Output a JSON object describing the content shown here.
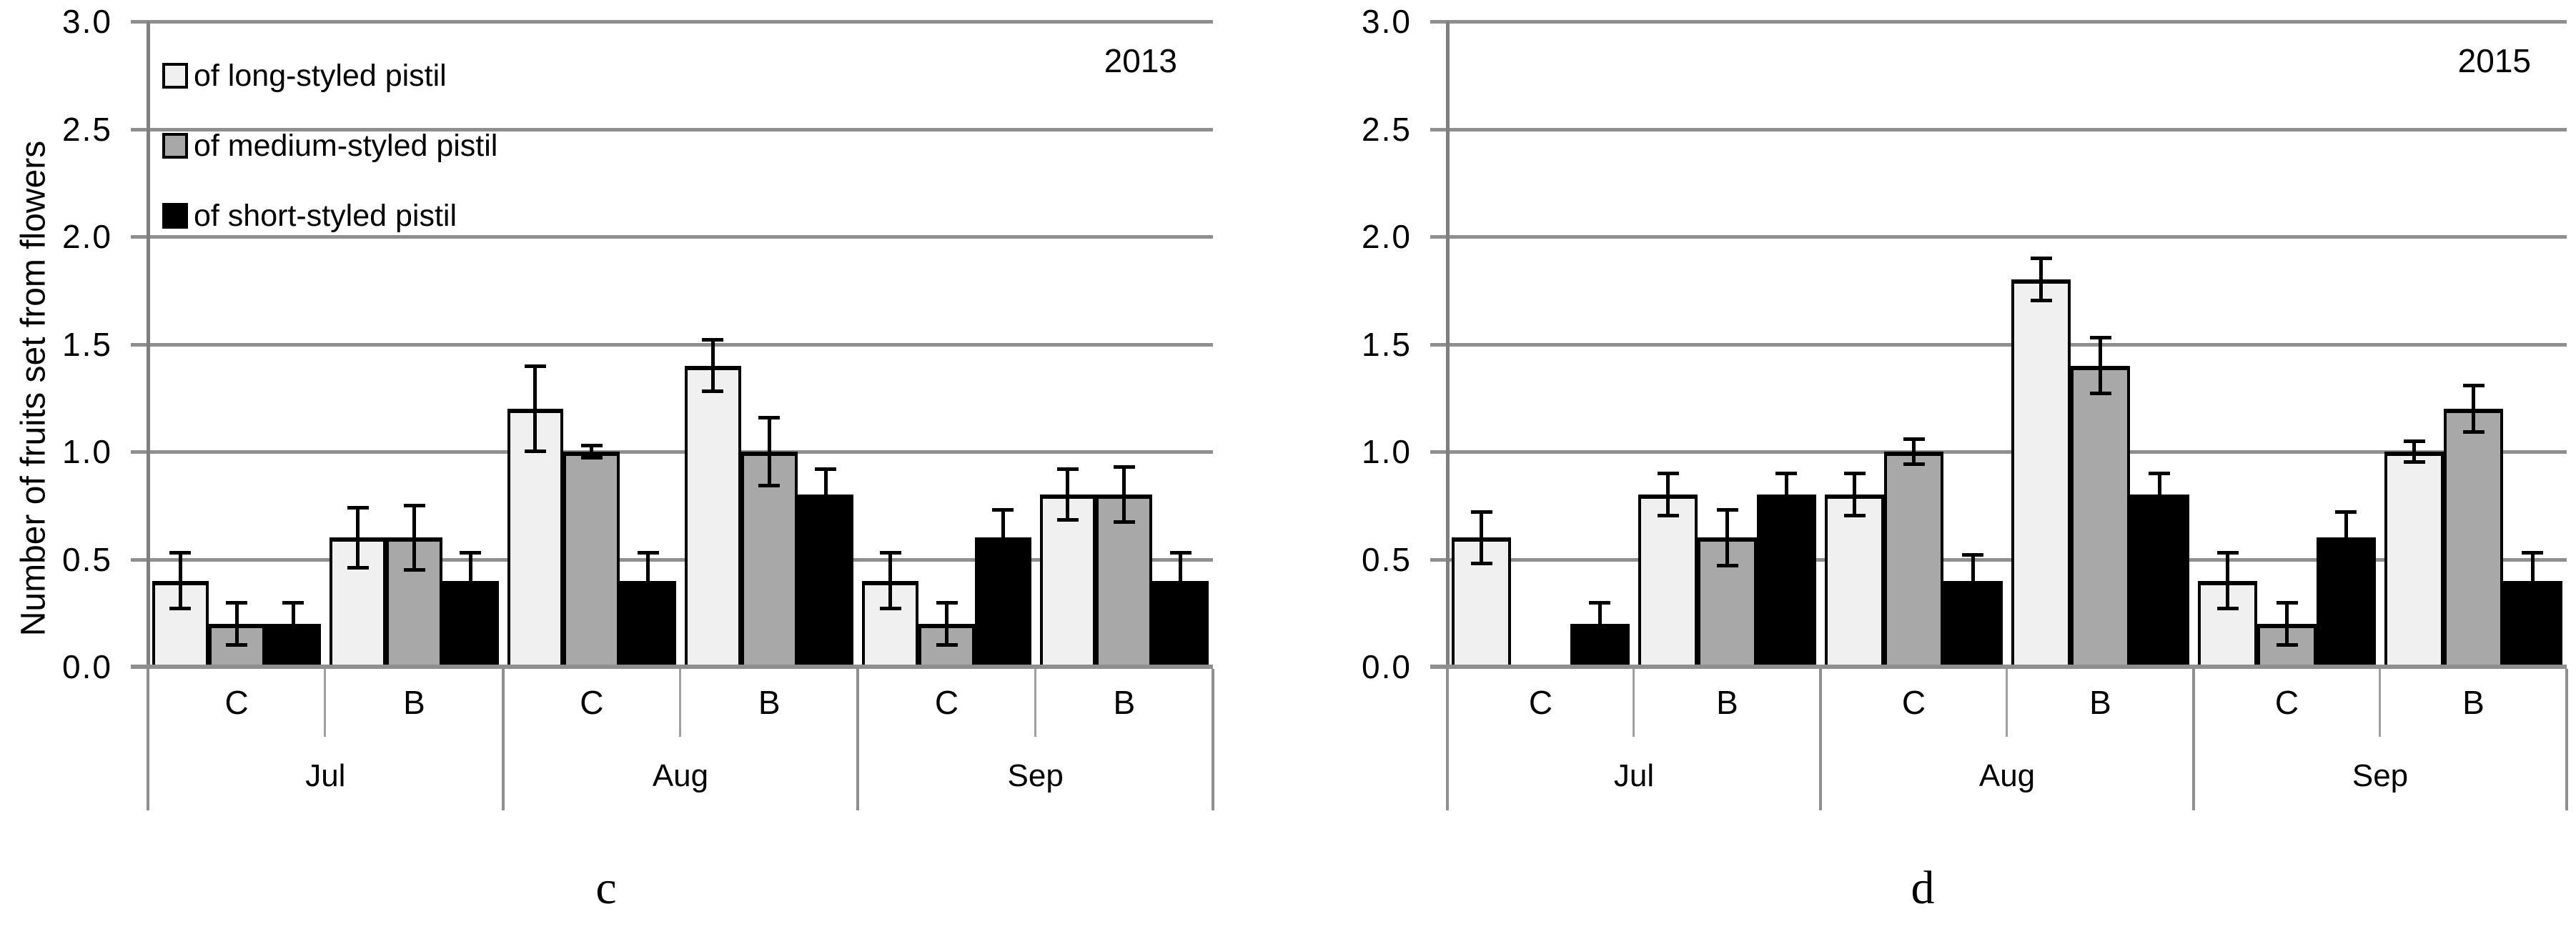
{
  "figure": {
    "y_axis_title": "Number of fruits set from flowers",
    "y_tick_labels": [
      "3.0",
      "2.5",
      "2.0",
      "1.5",
      "1.0",
      "0.5",
      "0.0"
    ],
    "colors": {
      "long_styled_fill": "#f0f0f0",
      "medium_styled_fill": "#a8a8a8",
      "short_styled_fill": "#000000",
      "gridline": "#8f8f8f",
      "axis": "#7f7f7f"
    },
    "legend": [
      {
        "label": "of long-styled pistil",
        "swatch": "long-styled-swatch",
        "fill": "#f0f0f0"
      },
      {
        "label": "of medium-styled pistil",
        "swatch": "medium-styled-swatch",
        "fill": "#a8a8a8"
      },
      {
        "label": "of short-styled pistil",
        "swatch": "short-styled-swatch",
        "fill": "#000000"
      }
    ]
  },
  "chart_data": [
    {
      "type": "bar",
      "title": "2013",
      "year_label": "2013",
      "panel_letter": "c",
      "ylabel": "Number of fruits set from flowers",
      "ylim": [
        0,
        3.0
      ],
      "ytick_step": 0.5,
      "grid": true,
      "legend_position": "top-left",
      "months": [
        "Jul",
        "Aug",
        "Sep"
      ],
      "treatments": [
        "C",
        "B"
      ],
      "groups": [
        "Jul C",
        "Jul B",
        "Aug C",
        "Aug B",
        "Sep C",
        "Sep B"
      ],
      "series": [
        {
          "name": "of long-styled pistil",
          "fill": "#f0f0f0",
          "values": [
            0.4,
            0.6,
            1.2,
            1.4,
            0.4,
            0.8
          ],
          "errors": [
            0.13,
            0.14,
            0.2,
            0.12,
            0.13,
            0.12
          ]
        },
        {
          "name": "of medium-styled pistil",
          "fill": "#a8a8a8",
          "values": [
            0.2,
            0.6,
            1.0,
            1.0,
            0.2,
            0.8
          ],
          "errors": [
            0.1,
            0.15,
            0.03,
            0.16,
            0.1,
            0.13
          ]
        },
        {
          "name": "of short-styled pistil",
          "fill": "#000000",
          "values": [
            0.2,
            0.4,
            0.4,
            0.8,
            0.6,
            0.4
          ],
          "errors": [
            0.1,
            0.13,
            0.13,
            0.12,
            0.13,
            0.13
          ]
        }
      ]
    },
    {
      "type": "bar",
      "title": "2015",
      "year_label": "2015",
      "panel_letter": "d",
      "ylabel": "Number of fruits set from flowers",
      "ylim": [
        0,
        3.0
      ],
      "ytick_step": 0.5,
      "grid": true,
      "legend_position": "none",
      "months": [
        "Jul",
        "Aug",
        "Sep"
      ],
      "treatments": [
        "C",
        "B"
      ],
      "groups": [
        "Jul C",
        "Jul B",
        "Aug C",
        "Aug B",
        "Sep C",
        "Sep B"
      ],
      "series": [
        {
          "name": "of long-styled pistil",
          "fill": "#f0f0f0",
          "values": [
            0.6,
            0.8,
            0.8,
            1.8,
            0.4,
            1.0
          ],
          "errors": [
            0.12,
            0.1,
            0.1,
            0.1,
            0.13,
            0.05
          ]
        },
        {
          "name": "of medium-styled pistil",
          "fill": "#a8a8a8",
          "values": [
            null,
            0.6,
            1.0,
            1.4,
            0.2,
            1.2
          ],
          "errors": [
            null,
            0.13,
            0.06,
            0.13,
            0.1,
            0.11
          ]
        },
        {
          "name": "of short-styled pistil",
          "fill": "#000000",
          "values": [
            0.2,
            0.8,
            0.4,
            0.8,
            0.6,
            0.4
          ],
          "errors": [
            0.1,
            0.1,
            0.12,
            0.1,
            0.12,
            0.13
          ]
        }
      ]
    }
  ]
}
